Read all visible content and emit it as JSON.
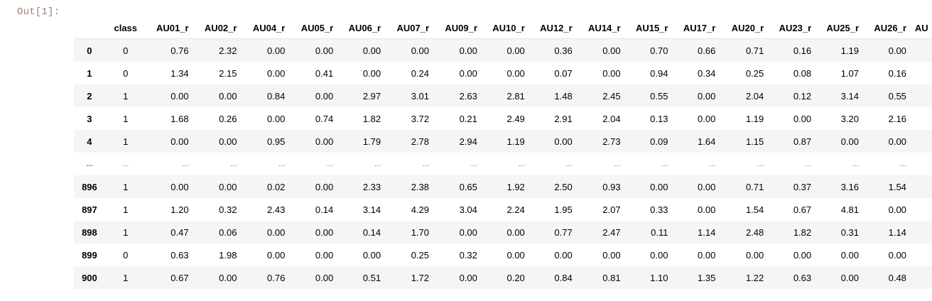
{
  "output_prompt": "Out[1]:",
  "table": {
    "index_header": "",
    "columns": [
      "class",
      "AU01_r",
      "AU02_r",
      "AU04_r",
      "AU05_r",
      "AU06_r",
      "AU07_r",
      "AU09_r",
      "AU10_r",
      "AU12_r",
      "AU14_r",
      "AU15_r",
      "AU17_r",
      "AU20_r",
      "AU23_r",
      "AU25_r",
      "AU26_r",
      "AU"
    ],
    "rows": [
      {
        "index": "0",
        "values": [
          "0",
          "0.76",
          "2.32",
          "0.00",
          "0.00",
          "0.00",
          "0.00",
          "0.00",
          "0.00",
          "0.36",
          "0.00",
          "0.70",
          "0.66",
          "0.71",
          "0.16",
          "1.19",
          "0.00",
          ""
        ]
      },
      {
        "index": "1",
        "values": [
          "0",
          "1.34",
          "2.15",
          "0.00",
          "0.41",
          "0.00",
          "0.24",
          "0.00",
          "0.00",
          "0.07",
          "0.00",
          "0.94",
          "0.34",
          "0.25",
          "0.08",
          "1.07",
          "0.16",
          ""
        ]
      },
      {
        "index": "2",
        "values": [
          "1",
          "0.00",
          "0.00",
          "0.84",
          "0.00",
          "2.97",
          "3.01",
          "2.63",
          "2.81",
          "1.48",
          "2.45",
          "0.55",
          "0.00",
          "2.04",
          "0.12",
          "3.14",
          "0.55",
          ""
        ]
      },
      {
        "index": "3",
        "values": [
          "1",
          "1.68",
          "0.26",
          "0.00",
          "0.74",
          "1.82",
          "3.72",
          "0.21",
          "2.49",
          "2.91",
          "2.04",
          "0.13",
          "0.00",
          "1.19",
          "0.00",
          "3.20",
          "2.16",
          ""
        ]
      },
      {
        "index": "4",
        "values": [
          "1",
          "0.00",
          "0.00",
          "0.95",
          "0.00",
          "1.79",
          "2.78",
          "2.94",
          "1.19",
          "0.00",
          "2.73",
          "0.09",
          "1.64",
          "1.15",
          "0.87",
          "0.00",
          "0.00",
          ""
        ]
      },
      {
        "index": "...",
        "values": [
          "...",
          "...",
          "...",
          "...",
          "...",
          "...",
          "...",
          "...",
          "...",
          "...",
          "...",
          "...",
          "...",
          "...",
          "...",
          "...",
          "...",
          ""
        ],
        "ellipsis": true
      },
      {
        "index": "896",
        "values": [
          "1",
          "0.00",
          "0.00",
          "0.02",
          "0.00",
          "2.33",
          "2.38",
          "0.65",
          "1.92",
          "2.50",
          "0.93",
          "0.00",
          "0.00",
          "0.71",
          "0.37",
          "3.16",
          "1.54",
          ""
        ]
      },
      {
        "index": "897",
        "values": [
          "1",
          "1.20",
          "0.32",
          "2.43",
          "0.14",
          "3.14",
          "4.29",
          "3.04",
          "2.24",
          "1.95",
          "2.07",
          "0.33",
          "0.00",
          "1.54",
          "0.67",
          "4.81",
          "0.00",
          ""
        ]
      },
      {
        "index": "898",
        "values": [
          "1",
          "0.47",
          "0.06",
          "0.00",
          "0.00",
          "0.14",
          "1.70",
          "0.00",
          "0.00",
          "0.77",
          "2.47",
          "0.11",
          "1.14",
          "2.48",
          "1.82",
          "0.31",
          "1.14",
          ""
        ]
      },
      {
        "index": "899",
        "values": [
          "0",
          "0.63",
          "1.98",
          "0.00",
          "0.00",
          "0.00",
          "0.25",
          "0.32",
          "0.00",
          "0.00",
          "0.00",
          "0.00",
          "0.00",
          "0.00",
          "0.00",
          "0.00",
          "0.00",
          ""
        ]
      },
      {
        "index": "900",
        "values": [
          "1",
          "0.67",
          "0.00",
          "0.76",
          "0.00",
          "0.51",
          "1.72",
          "0.00",
          "0.20",
          "0.84",
          "0.81",
          "1.10",
          "1.35",
          "1.22",
          "0.63",
          "0.00",
          "0.48",
          ""
        ]
      }
    ]
  }
}
